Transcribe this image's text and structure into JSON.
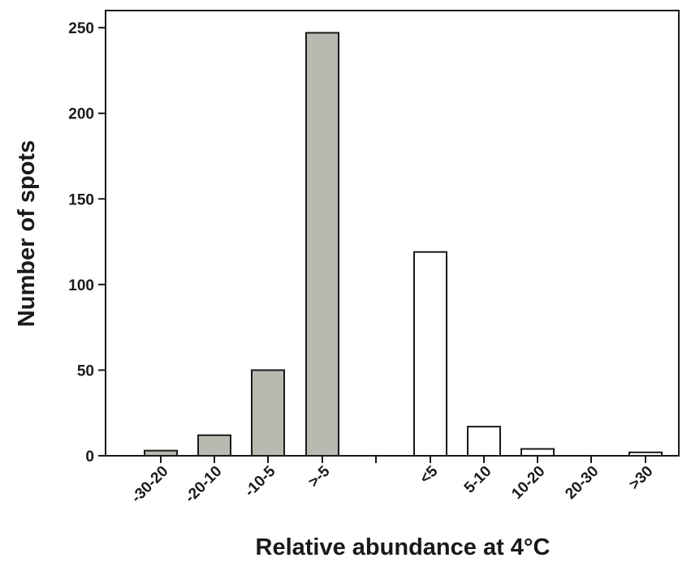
{
  "chart_data": {
    "type": "bar",
    "title": "",
    "xlabel": "Relative abundance at 4°C",
    "ylabel": "Number of spots",
    "ylim": [
      0,
      260
    ],
    "yticks": [
      0,
      50,
      100,
      150,
      200,
      250
    ],
    "categories": [
      "-30-20",
      "-20-10",
      "-10-5",
      ">-5",
      "<5",
      "5-10",
      "10-20",
      "20-30",
      ">30"
    ],
    "values": [
      3,
      12,
      50,
      247,
      119,
      17,
      4,
      0,
      2
    ],
    "colors": {
      "decreased": "#b8bab2",
      "increased": "#ffffff",
      "outline": "#1a1a1a"
    },
    "groups": [
      "decreased",
      "decreased",
      "decreased",
      "decreased",
      "increased",
      "increased",
      "increased",
      "increased",
      "increased"
    ],
    "grid": false,
    "legend": "none"
  }
}
